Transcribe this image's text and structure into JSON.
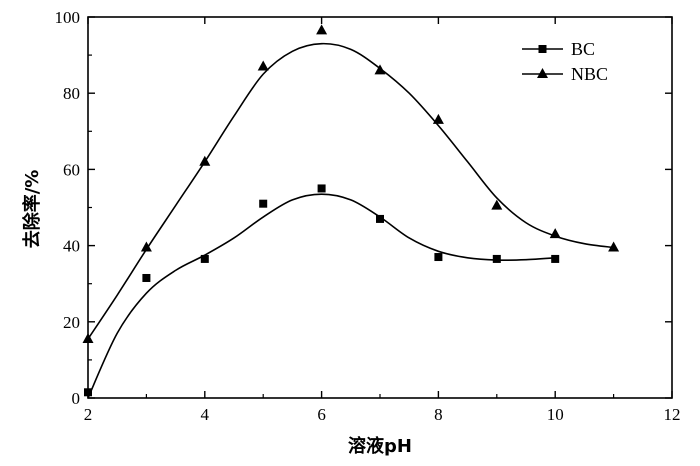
{
  "chart_data": {
    "type": "line",
    "xlabel": "溶液pH",
    "ylabel": "去除率/%",
    "xlim": [
      2,
      12
    ],
    "ylim": [
      0,
      100
    ],
    "xticks": [
      2,
      4,
      6,
      8,
      10,
      12
    ],
    "yticks": [
      0,
      20,
      40,
      60,
      80,
      100
    ],
    "grid": false,
    "legend_position": "top-right",
    "series": [
      {
        "name": "BC",
        "marker": "square",
        "points": [
          {
            "x": 2,
            "y": 1.5
          },
          {
            "x": 3,
            "y": 31.5
          },
          {
            "x": 4,
            "y": 36.5
          },
          {
            "x": 5,
            "y": 51
          },
          {
            "x": 6,
            "y": 55
          },
          {
            "x": 7,
            "y": 47
          },
          {
            "x": 8,
            "y": 37
          },
          {
            "x": 9,
            "y": 36.5
          },
          {
            "x": 10,
            "y": 36.5
          }
        ],
        "fit_curve": [
          {
            "x": 2,
            "y": 0
          },
          {
            "x": 2.5,
            "y": 17
          },
          {
            "x": 3,
            "y": 27.5
          },
          {
            "x": 3.5,
            "y": 33.5
          },
          {
            "x": 4,
            "y": 37.5
          },
          {
            "x": 4.5,
            "y": 42
          },
          {
            "x": 5,
            "y": 47.5
          },
          {
            "x": 5.5,
            "y": 52
          },
          {
            "x": 6,
            "y": 53.5
          },
          {
            "x": 6.5,
            "y": 52
          },
          {
            "x": 7,
            "y": 47.5
          },
          {
            "x": 7.5,
            "y": 42
          },
          {
            "x": 8,
            "y": 38.5
          },
          {
            "x": 8.5,
            "y": 36.8
          },
          {
            "x": 9,
            "y": 36.2
          },
          {
            "x": 9.5,
            "y": 36.3
          },
          {
            "x": 10,
            "y": 36.8
          }
        ]
      },
      {
        "name": "NBC",
        "marker": "triangle",
        "points": [
          {
            "x": 2,
            "y": 15.5
          },
          {
            "x": 3,
            "y": 39.5
          },
          {
            "x": 4,
            "y": 62
          },
          {
            "x": 5,
            "y": 87
          },
          {
            "x": 6,
            "y": 96.5
          },
          {
            "x": 7,
            "y": 86
          },
          {
            "x": 8,
            "y": 73
          },
          {
            "x": 9,
            "y": 50.5
          },
          {
            "x": 10,
            "y": 43
          },
          {
            "x": 11,
            "y": 39.5
          }
        ],
        "fit_curve": [
          {
            "x": 2,
            "y": 15.5
          },
          {
            "x": 2.5,
            "y": 27
          },
          {
            "x": 3,
            "y": 39
          },
          {
            "x": 3.5,
            "y": 50.5
          },
          {
            "x": 4,
            "y": 62
          },
          {
            "x": 4.5,
            "y": 74
          },
          {
            "x": 5,
            "y": 85
          },
          {
            "x": 5.5,
            "y": 91
          },
          {
            "x": 6,
            "y": 93
          },
          {
            "x": 6.5,
            "y": 91.5
          },
          {
            "x": 7,
            "y": 86.5
          },
          {
            "x": 7.5,
            "y": 80
          },
          {
            "x": 8,
            "y": 71.5
          },
          {
            "x": 8.5,
            "y": 62
          },
          {
            "x": 9,
            "y": 52.5
          },
          {
            "x": 9.5,
            "y": 46
          },
          {
            "x": 10,
            "y": 42.5
          },
          {
            "x": 10.5,
            "y": 40.5
          },
          {
            "x": 11,
            "y": 39.5
          }
        ]
      }
    ]
  }
}
